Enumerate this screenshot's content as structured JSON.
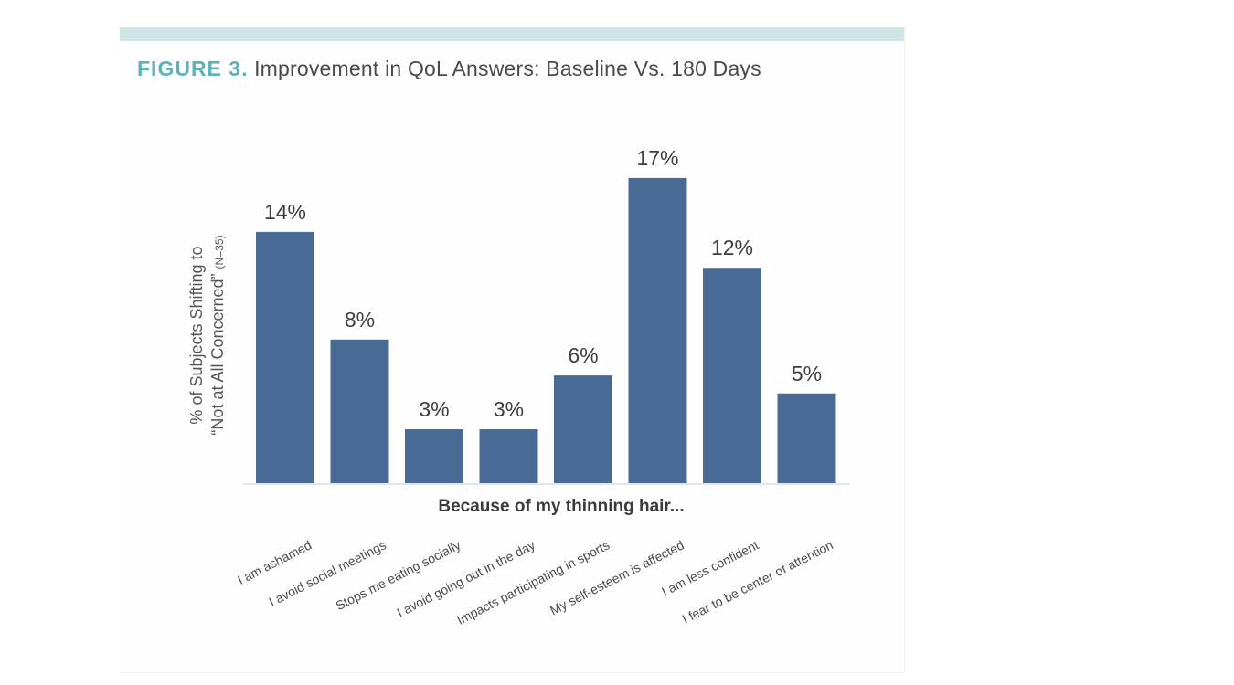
{
  "figure": {
    "label": "FIGURE 3.",
    "title": "Improvement in QoL Answers: Baseline Vs. 180 Days"
  },
  "colors": {
    "bar": "#4a6a96",
    "accent": "#5fb0b9",
    "band": "#cfe5e5"
  },
  "chart_data": {
    "type": "bar",
    "title": "Improvement in QoL Answers: Baseline Vs. 180 Days",
    "ylabel_line1": "% of Subjects Shifting to",
    "ylabel_line2": "“Not at All Concerned”",
    "ylabel_n": "(N=35)",
    "xlabel": "Because of my thinning hair...",
    "categories": [
      "I am ashamed",
      "I avoid social meetings",
      "Stops me eating socially",
      "I avoid going out in the day",
      "Impacts participating in sports",
      "My self-esteem is affected",
      "I am less confident",
      "I fear to be center of attention"
    ],
    "values": [
      14,
      8,
      3,
      3,
      6,
      17,
      12,
      5
    ],
    "data_labels": [
      "14%",
      "8%",
      "3%",
      "3%",
      "6%",
      "17%",
      "12%",
      "5%"
    ],
    "ylim": [
      0,
      20
    ],
    "grid": false,
    "legend": "none"
  }
}
